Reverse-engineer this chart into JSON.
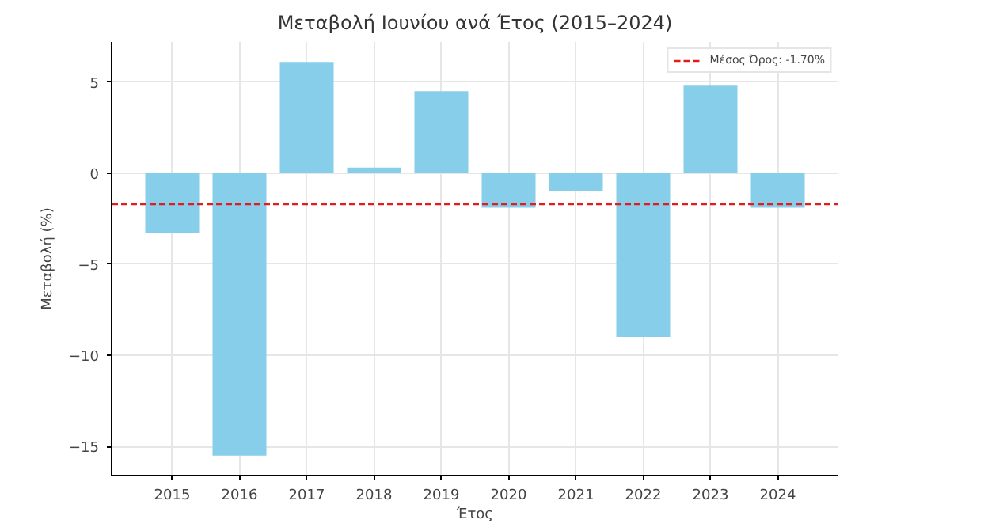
{
  "chart_data": {
    "type": "bar",
    "title": "Μεταβολή Ιουνίου ανά Έτος (2015–2024)",
    "xlabel": "Έτος",
    "ylabel": "Μεταβολή (%)",
    "categories": [
      "2015",
      "2016",
      "2017",
      "2018",
      "2019",
      "2020",
      "2021",
      "2022",
      "2023",
      "2024"
    ],
    "series": [
      {
        "color": "#87ceeb",
        "values": [
          -3.3,
          -15.5,
          6.1,
          0.3,
          4.5,
          -1.9,
          -1.0,
          -9.0,
          4.8,
          -1.9
        ]
      }
    ],
    "ylim": [
      -16.6,
      7.2
    ],
    "yticks": [
      {
        "value": -15,
        "label": "−15"
      },
      {
        "value": -10,
        "label": "−10"
      },
      {
        "value": -5,
        "label": "−5"
      },
      0,
      5
    ],
    "ref_lines": [
      {
        "axis": "y",
        "value": -1.7,
        "label": "Μέσος Όρος: -1.70%",
        "color": "#e41a1c",
        "line_style": "dashed"
      }
    ],
    "grid": true,
    "legend": "top right"
  }
}
